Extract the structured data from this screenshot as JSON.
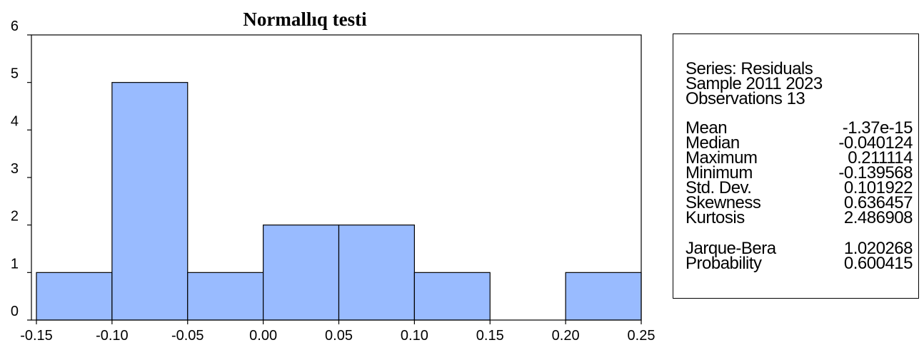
{
  "chart_data": {
    "type": "bar",
    "title": "Normallıq testi",
    "bins": [
      {
        "from": -0.15,
        "to": -0.1,
        "count": 1
      },
      {
        "from": -0.1,
        "to": -0.05,
        "count": 5
      },
      {
        "from": -0.05,
        "to": 0.0,
        "count": 1
      },
      {
        "from": 0.0,
        "to": 0.05,
        "count": 2
      },
      {
        "from": 0.05,
        "to": 0.1,
        "count": 2
      },
      {
        "from": 0.1,
        "to": 0.15,
        "count": 1
      },
      {
        "from": 0.15,
        "to": 0.2,
        "count": 0
      },
      {
        "from": 0.2,
        "to": 0.25,
        "count": 1
      }
    ],
    "xlim": [
      -0.15,
      0.25
    ],
    "ylim": [
      0,
      6
    ],
    "x_ticks": [
      "-0.15",
      "-0.10",
      "-0.05",
      "0.00",
      "0.05",
      "0.10",
      "0.15",
      "0.20",
      "0.25"
    ],
    "y_ticks": [
      "0",
      "1",
      "2",
      "3",
      "4",
      "5",
      "6"
    ],
    "bar_color": "#99bbff",
    "grid": false,
    "legend": "none"
  },
  "stats": {
    "series": "Series: Residuals",
    "sample": "Sample 2011 2023",
    "observations": "Observations 13",
    "rows": [
      {
        "label": "Mean",
        "value": "-1.37e-15"
      },
      {
        "label": "Median",
        "value": "-0.040124"
      },
      {
        "label": "Maximum",
        "value": "0.211114"
      },
      {
        "label": "Minimum",
        "value": "-0.139568"
      },
      {
        "label": "Std. Dev.",
        "value": "0.101922"
      },
      {
        "label": "Skewness",
        "value": "0.636457"
      },
      {
        "label": "Kurtosis",
        "value": "2.486908"
      }
    ],
    "tests": [
      {
        "label": "Jarque-Bera",
        "value": "1.020268"
      },
      {
        "label": "Probability",
        "value": "0.600415"
      }
    ]
  }
}
